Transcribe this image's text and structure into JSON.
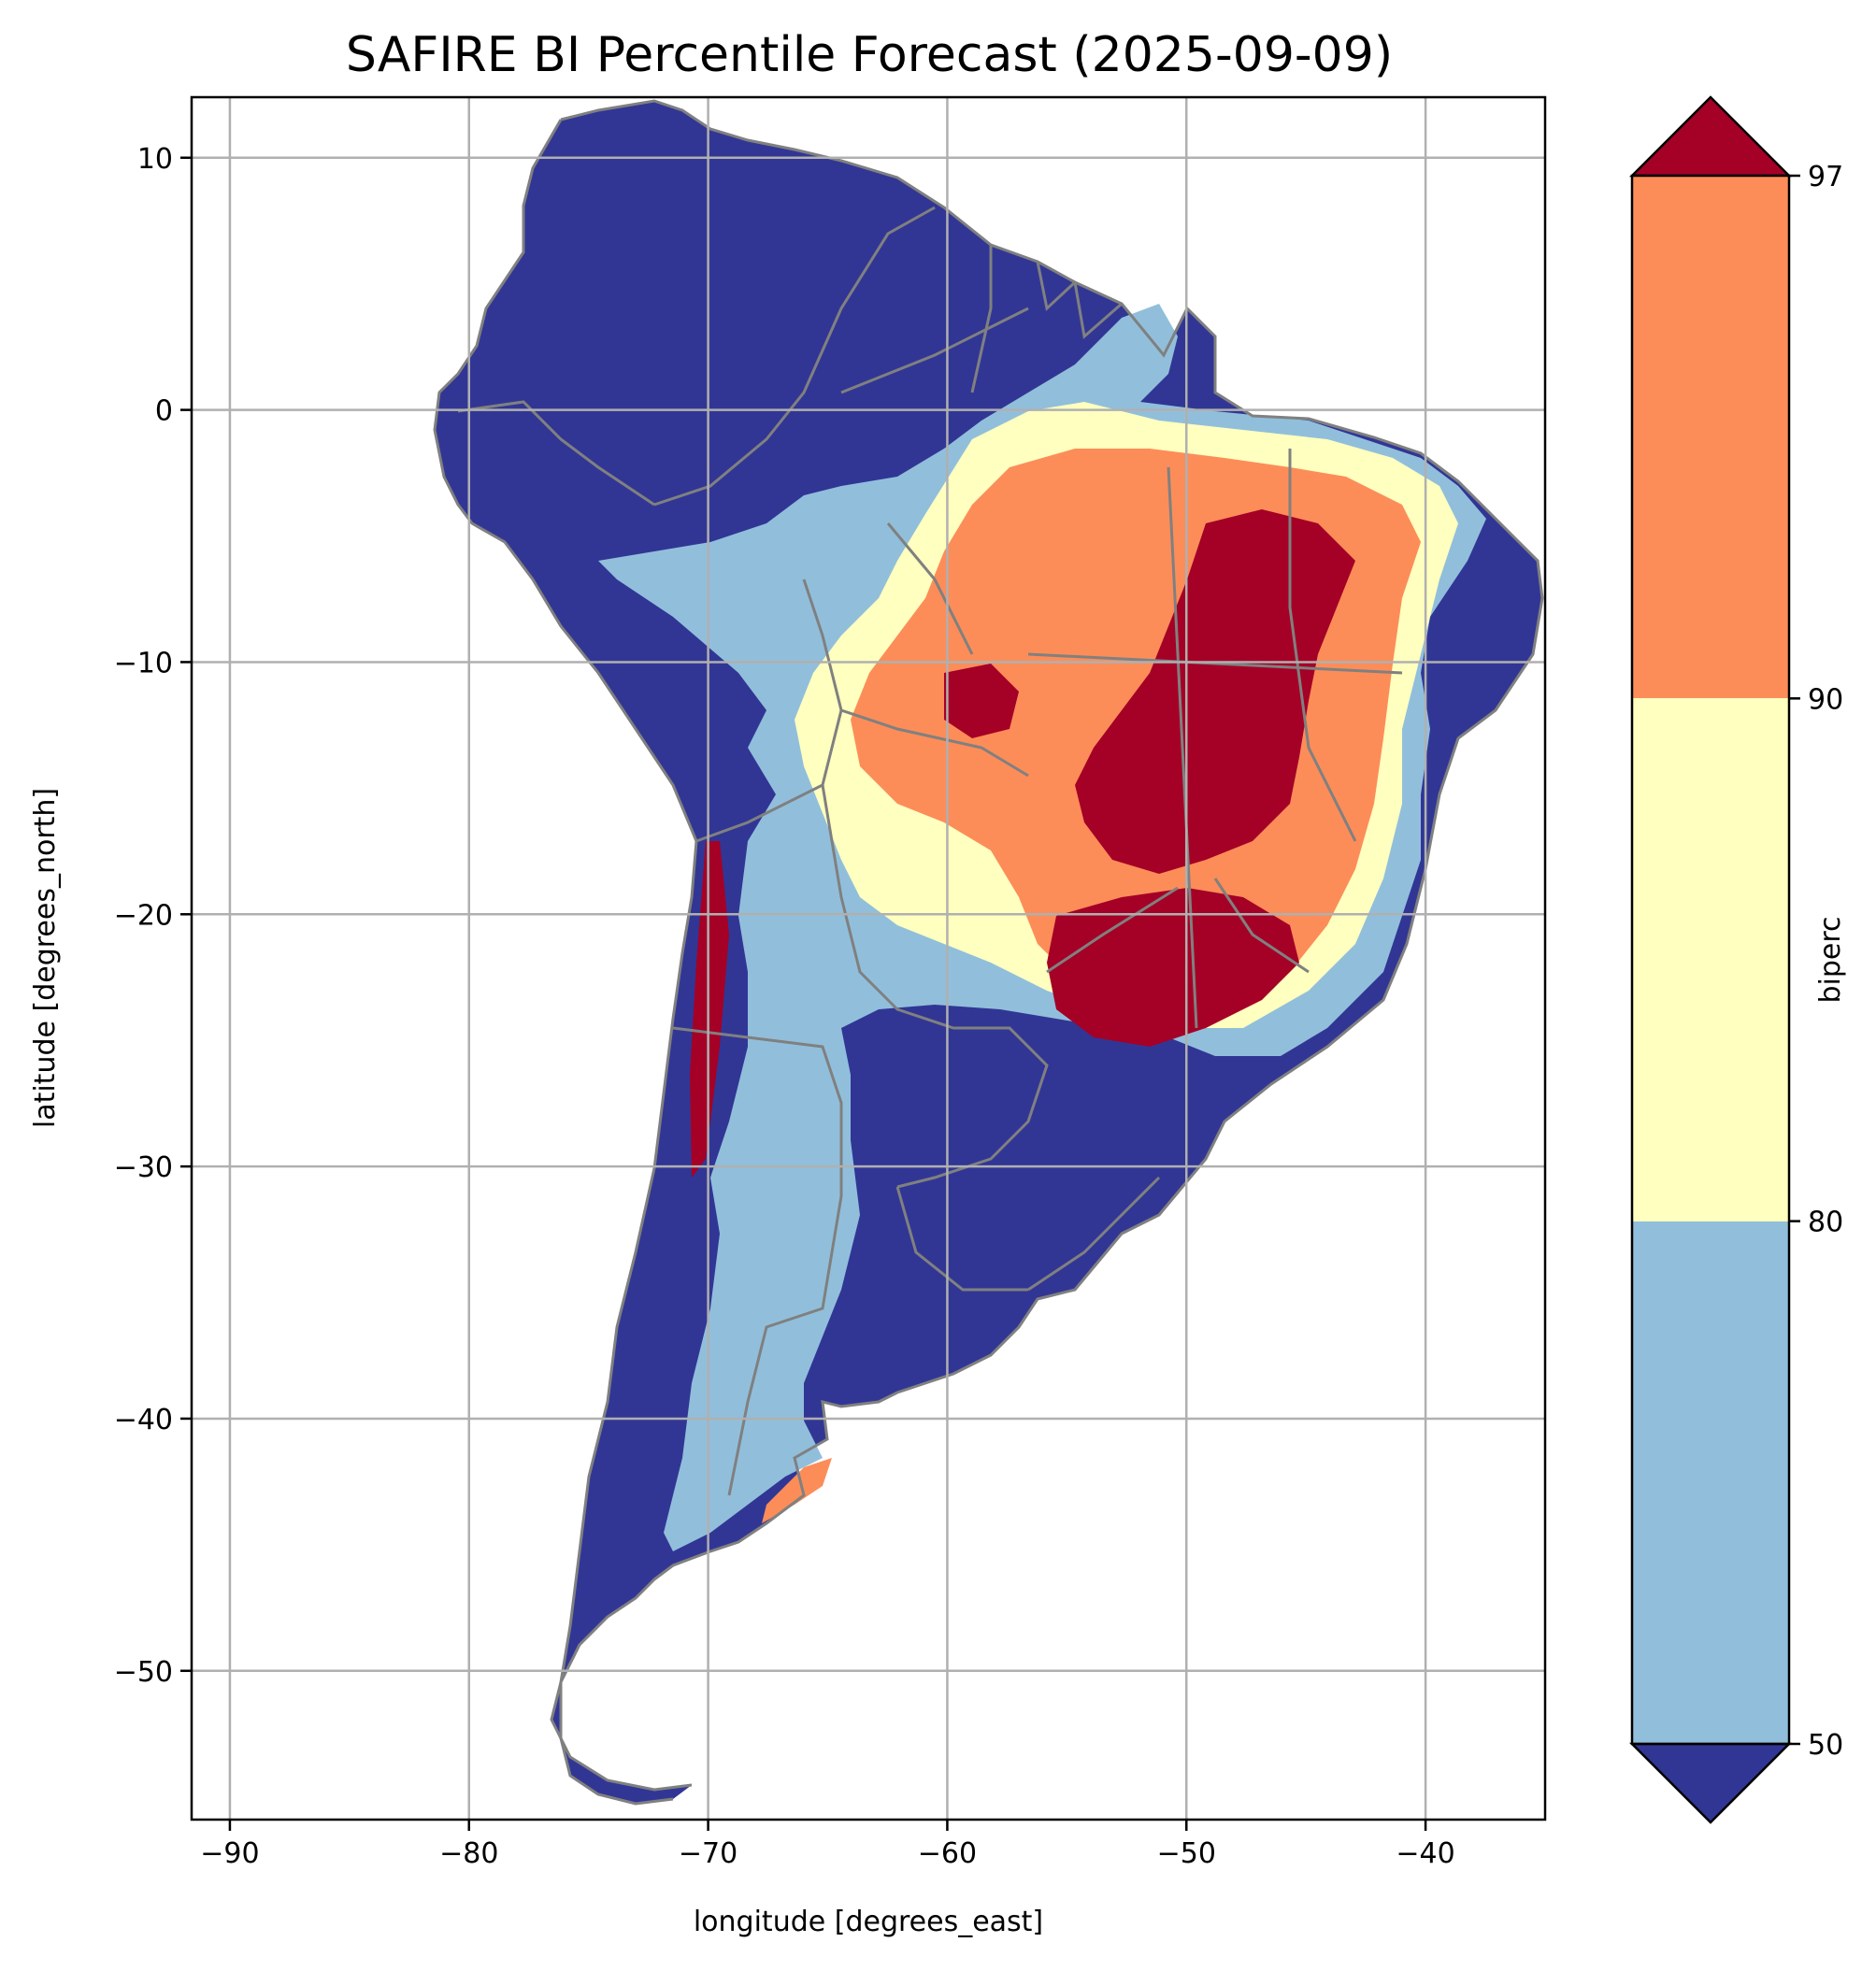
{
  "title": "SAFIRE BI Percentile Forecast (2025-09-09)",
  "map": {
    "xlabel": "longitude [degrees_east]",
    "ylabel": "latitude [degrees_north]",
    "x_ticks": [
      "−90",
      "−80",
      "−70",
      "−60",
      "−50",
      "−40"
    ],
    "y_ticks": [
      "10",
      "0",
      "−10",
      "−20",
      "−30",
      "−40",
      "−50"
    ],
    "xlim": [
      -91.6,
      -35
    ],
    "ylim": [
      -55.9,
      12.4
    ],
    "grid": true,
    "ocean_color": "#ffffff",
    "border_color": "#808080"
  },
  "colorbar": {
    "label": "biperc",
    "ticks": [
      "50",
      "80",
      "90",
      "97"
    ],
    "extend": "both",
    "bins": [
      {
        "range": "< 50",
        "color": "#313695"
      },
      {
        "range": "50–80",
        "color": "#91bfdb"
      },
      {
        "range": "80–90",
        "color": "#ffffbf"
      },
      {
        "range": "90–97",
        "color": "#fc8d59"
      },
      {
        "range": "> 97",
        "color": "#a50026"
      }
    ]
  }
}
